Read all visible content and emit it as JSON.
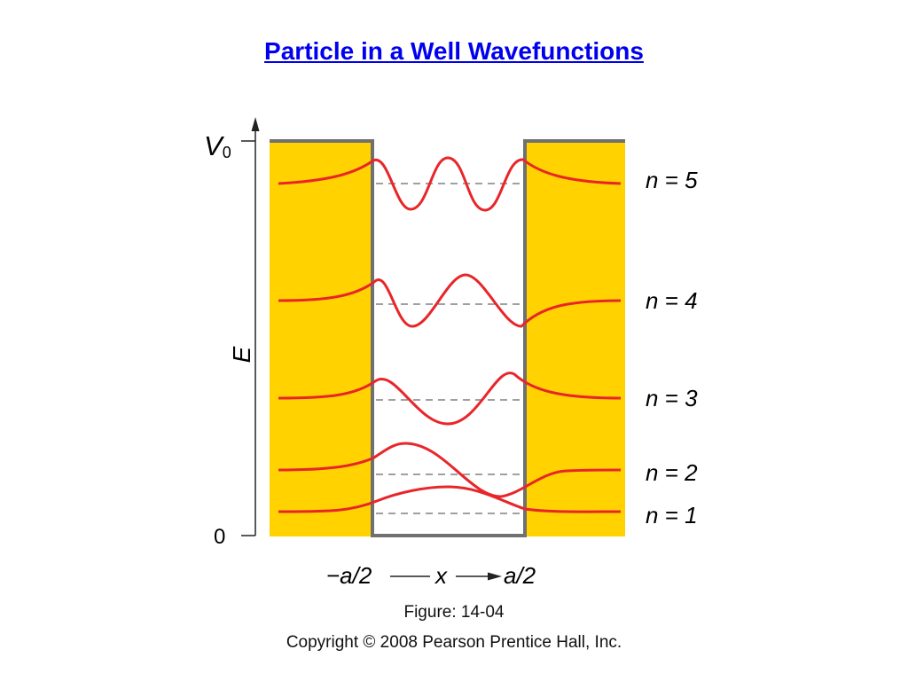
{
  "title": "Particle in a Well Wavefunctions",
  "diagram": {
    "y_axis": {
      "top_label": "V",
      "top_label_sub": "0",
      "bottom_label": "0",
      "axis_label": "E"
    },
    "x_axis": {
      "left_label": "−a/2",
      "middle_label": "x",
      "right_label": "a/2"
    },
    "levels": [
      {
        "n_label": "n = 5"
      },
      {
        "n_label": "n = 4"
      },
      {
        "n_label": "n = 3"
      },
      {
        "n_label": "n = 2"
      },
      {
        "n_label": "n = 1"
      }
    ],
    "colors": {
      "barrier": "#ffd200",
      "wall": "#707070",
      "wavefunction": "#e8262a",
      "energy_line": "#808080"
    }
  },
  "figure_caption": "Figure: 14-04",
  "copyright": "Copyright © 2008 Pearson Prentice Hall, Inc."
}
